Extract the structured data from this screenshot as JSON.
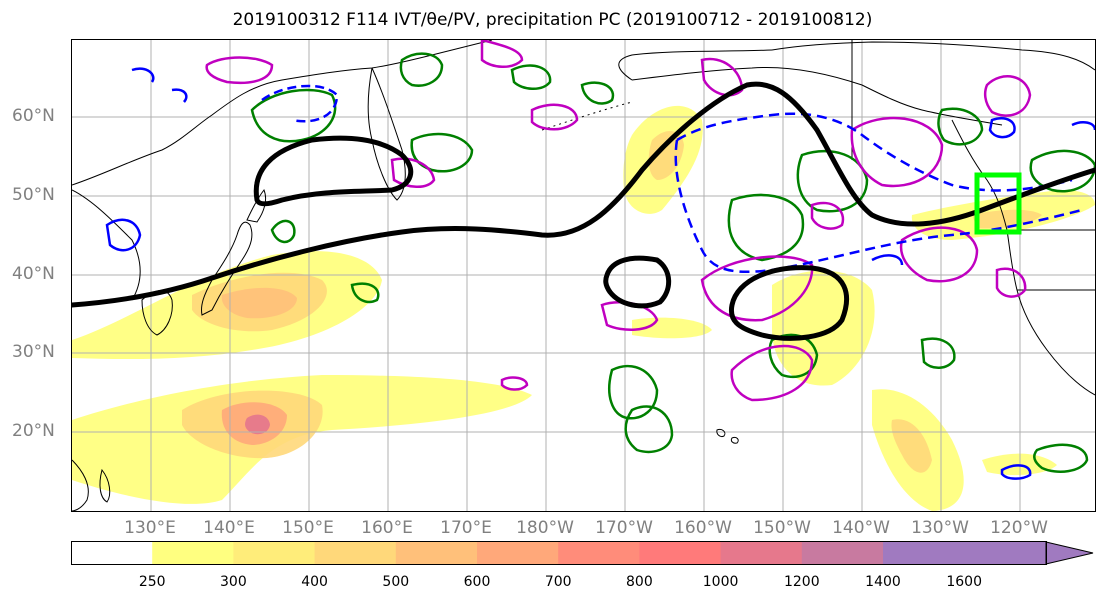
{
  "title": "2019100312 F114 IVT/θe/PV, precipitation PC (2019100712 - 2019100812)",
  "lat_labels": [
    "60°N",
    "50°N",
    "40°N",
    "30°N",
    "20°N"
  ],
  "lon_labels": [
    "130°E",
    "140°E",
    "150°E",
    "160°E",
    "170°E",
    "180°W",
    "170°W",
    "160°W",
    "150°W",
    "140°W",
    "130°W",
    "120°W"
  ],
  "colorbar": {
    "ticks": [
      "250",
      "300",
      "400",
      "500",
      "600",
      "700",
      "800",
      "1000",
      "1200",
      "1400",
      "1600"
    ],
    "colors": [
      "#ffffff",
      "#ffff80",
      "#ffed7a",
      "#ffd87a",
      "#ffc07a",
      "#ffa87a",
      "#ff8c7a",
      "#ff7a7a",
      "#e6788c",
      "#c87aa0",
      "#a07ac0"
    ]
  },
  "colors": {
    "jet_contour": "#000000",
    "pv_dashed": "#0000ff",
    "green_contour": "#008000",
    "magenta_contour": "#c000c0",
    "highlight_box": "#00ff00",
    "grid": "#b0b0b0",
    "axis_text": "#808080"
  }
}
